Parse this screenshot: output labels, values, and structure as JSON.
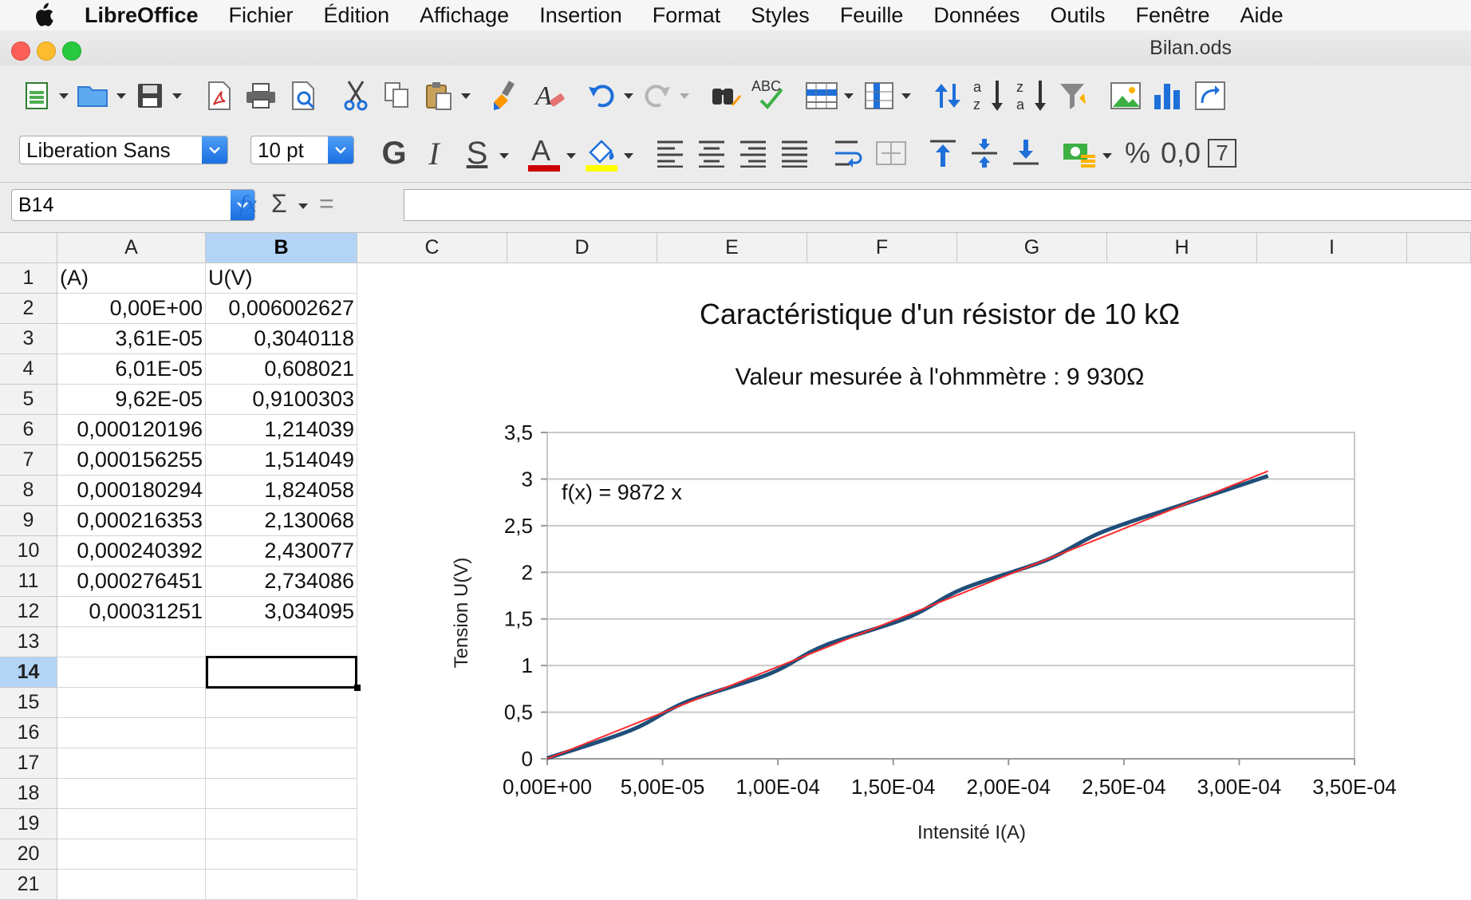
{
  "menubar": {
    "app_name": "LibreOffice",
    "items": [
      "Fichier",
      "Édition",
      "Affichage",
      "Insertion",
      "Format",
      "Styles",
      "Feuille",
      "Données",
      "Outils",
      "Fenêtre",
      "Aide"
    ]
  },
  "window": {
    "title": "Bilan.ods"
  },
  "toolbar": {
    "font_name": "Liberation Sans",
    "font_size": "10 pt",
    "bold_label": "G",
    "italic_label": "I",
    "shadow_label": "S",
    "percent_label": "%",
    "number_format_label": "0,0",
    "spellcheck_label": "ABC",
    "font_color": "#cc0000",
    "highlight_color": "#ffff00"
  },
  "formula_bar": {
    "cell_ref": "B14",
    "fx_label": "fx",
    "sum_label": "Σ",
    "equals_label": "=",
    "content": ""
  },
  "sheet": {
    "columns": [
      "A",
      "B",
      "C",
      "D",
      "E",
      "F",
      "G",
      "H",
      "I"
    ],
    "selected_column": "B",
    "rows": [
      "1",
      "2",
      "3",
      "4",
      "5",
      "6",
      "7",
      "8",
      "9",
      "10",
      "11",
      "12",
      "13",
      "14",
      "15",
      "16",
      "17",
      "18",
      "19",
      "20",
      "21"
    ],
    "selected_row": "14",
    "headers": {
      "A": "(A)",
      "B": "U(V)"
    },
    "data": [
      [
        "0,00E+00",
        "0,006002627"
      ],
      [
        "3,61E-05",
        "0,3040118"
      ],
      [
        "6,01E-05",
        "0,608021"
      ],
      [
        "9,62E-05",
        "0,9100303"
      ],
      [
        "0,000120196",
        "1,214039"
      ],
      [
        "0,000156255",
        "1,514049"
      ],
      [
        "0,000180294",
        "1,824058"
      ],
      [
        "0,000216353",
        "2,130068"
      ],
      [
        "0,000240392",
        "2,430077"
      ],
      [
        "0,000276451",
        "2,734086"
      ],
      [
        "0,00031251",
        "3,034095"
      ]
    ]
  },
  "chart_data": {
    "type": "line",
    "title": "Caractéristique d'un résistor de 10 kΩ",
    "subtitle": "Valeur mesurée à l'ohmmètre : 9 930Ω",
    "xlabel": "Intensité I(A)",
    "ylabel": "Tension U(V)",
    "xlim": [
      0,
      0.00035
    ],
    "ylim": [
      0,
      3.5
    ],
    "x_ticks": [
      "0,00E+00",
      "5,00E-05",
      "1,00E-04",
      "1,50E-04",
      "2,00E-04",
      "2,50E-04",
      "3,00E-04",
      "3,50E-04"
    ],
    "y_ticks": [
      "0",
      "0,5",
      "1",
      "1,5",
      "2",
      "2,5",
      "3",
      "3,5"
    ],
    "grid": true,
    "series": [
      {
        "color": "#1f4e79",
        "x": [
          0,
          3.61e-05,
          6.01e-05,
          9.62e-05,
          0.000120196,
          0.000156255,
          0.000180294,
          0.000216353,
          0.000240392,
          0.000276451,
          0.00031251
        ],
        "y": [
          0.006002627,
          0.3040118,
          0.608021,
          0.9100303,
          1.214039,
          1.514049,
          1.824058,
          2.130068,
          2.430077,
          2.734086,
          3.034095
        ]
      }
    ],
    "trendline": {
      "slope": 9872,
      "color": "#ff2a2a",
      "equation_label": "f(x) = 9872 x"
    }
  }
}
